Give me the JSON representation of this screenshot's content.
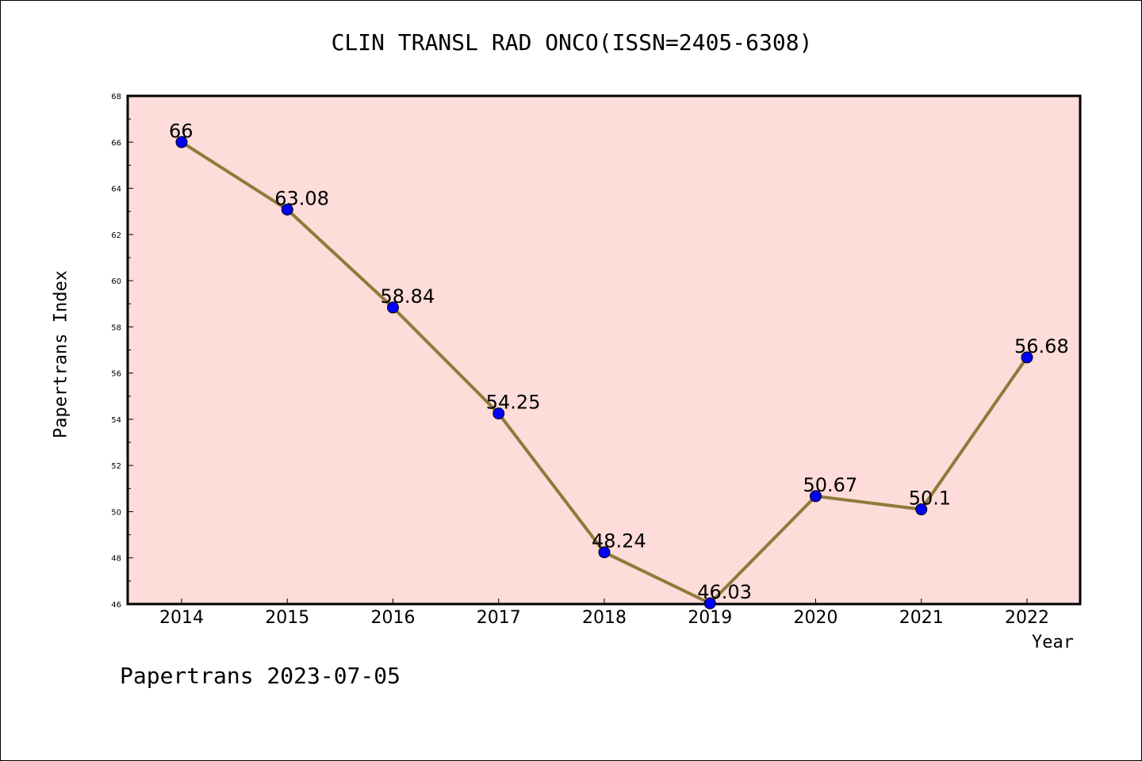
{
  "chart_data": {
    "type": "line",
    "title": "CLIN TRANSL RAD ONCO(ISSN=2405-6308)",
    "xlabel": "Year",
    "ylabel": "Papertrans Index",
    "categories": [
      "2014",
      "2015",
      "2016",
      "2017",
      "2018",
      "2019",
      "2020",
      "2021",
      "2022"
    ],
    "series": [
      {
        "values": [
          66,
          63.08,
          58.84,
          54.25,
          48.24,
          46.03,
          50.67,
          50.1,
          56.68
        ],
        "labels": [
          "66",
          "63.08",
          "58.84",
          "54.25",
          "48.24",
          "46.03",
          "50.67",
          "50.1",
          "56.68"
        ]
      }
    ],
    "ylim": [
      46,
      68
    ],
    "yticks": [
      46,
      48,
      50,
      52,
      54,
      56,
      58,
      60,
      62,
      64,
      66,
      68
    ],
    "grid": false,
    "colors": {
      "plot_background": "#fddcd9",
      "line": "#8f7a3a",
      "marker": "#0000ff"
    }
  },
  "footer": "Papertrans 2023-07-05"
}
